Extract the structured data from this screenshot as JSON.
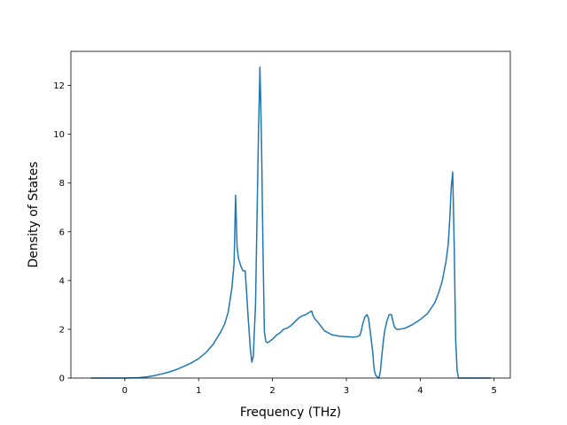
{
  "chart_data": {
    "type": "line",
    "title": "",
    "xlabel": "Frequency (THz)",
    "ylabel": "Density of States",
    "xlim": [
      -0.73,
      5.22
    ],
    "ylim": [
      0,
      13.4
    ],
    "xticks": [
      0,
      1,
      2,
      3,
      4,
      5
    ],
    "xtick_labels": [
      "0",
      "1",
      "2",
      "3",
      "4",
      "5"
    ],
    "yticks": [
      0,
      2,
      4,
      6,
      8,
      10,
      12
    ],
    "ytick_labels": [
      "0",
      "2",
      "4",
      "6",
      "8",
      "10",
      "12"
    ],
    "grid": false,
    "series": [
      {
        "color": "#1f77b4",
        "x": [
          -0.45,
          -0.2,
          0.0,
          0.2,
          0.3,
          0.4,
          0.5,
          0.6,
          0.7,
          0.8,
          0.9,
          1.0,
          1.1,
          1.2,
          1.3,
          1.35,
          1.4,
          1.45,
          1.48,
          1.5,
          1.52,
          1.54,
          1.57,
          1.6,
          1.63,
          1.65,
          1.67,
          1.7,
          1.72,
          1.74,
          1.77,
          1.79,
          1.81,
          1.83,
          1.85,
          1.87,
          1.89,
          1.91,
          1.93,
          1.96,
          2.0,
          2.05,
          2.1,
          2.15,
          2.2,
          2.25,
          2.3,
          2.35,
          2.4,
          2.45,
          2.5,
          2.53,
          2.55,
          2.58,
          2.6,
          2.65,
          2.7,
          2.8,
          2.9,
          3.0,
          3.1,
          3.15,
          3.18,
          3.2,
          3.22,
          3.25,
          3.28,
          3.3,
          3.32,
          3.34,
          3.36,
          3.37,
          3.38,
          3.4,
          3.42,
          3.44,
          3.46,
          3.48,
          3.5,
          3.52,
          3.55,
          3.58,
          3.61,
          3.63,
          3.65,
          3.68,
          3.72,
          3.8,
          3.9,
          4.0,
          4.1,
          4.2,
          4.25,
          4.3,
          4.35,
          4.38,
          4.4,
          4.42,
          4.44,
          4.46,
          4.48,
          4.5,
          4.52,
          4.6,
          4.8,
          4.95
        ],
        "y": [
          0.0,
          0.0,
          0.0,
          0.02,
          0.05,
          0.1,
          0.17,
          0.25,
          0.35,
          0.48,
          0.62,
          0.8,
          1.05,
          1.4,
          1.9,
          2.2,
          2.7,
          3.7,
          4.7,
          7.5,
          5.4,
          4.9,
          4.6,
          4.4,
          4.4,
          3.5,
          2.5,
          1.2,
          0.65,
          0.9,
          3.0,
          6.5,
          10.0,
          12.75,
          10.0,
          5.5,
          1.9,
          1.5,
          1.45,
          1.5,
          1.6,
          1.75,
          1.85,
          2.0,
          2.05,
          2.15,
          2.3,
          2.45,
          2.55,
          2.6,
          2.7,
          2.75,
          2.55,
          2.4,
          2.35,
          2.15,
          1.95,
          1.78,
          1.72,
          1.7,
          1.68,
          1.7,
          1.75,
          1.9,
          2.2,
          2.5,
          2.6,
          2.45,
          2.0,
          1.5,
          1.0,
          0.55,
          0.3,
          0.1,
          0.05,
          0.0,
          0.25,
          0.9,
          1.5,
          1.95,
          2.35,
          2.6,
          2.6,
          2.35,
          2.1,
          2.0,
          2.0,
          2.05,
          2.2,
          2.4,
          2.65,
          3.1,
          3.5,
          4.0,
          4.8,
          5.5,
          6.5,
          7.8,
          8.45,
          5.5,
          1.6,
          0.3,
          0.0,
          0.0,
          0.0,
          0.0
        ]
      }
    ]
  }
}
